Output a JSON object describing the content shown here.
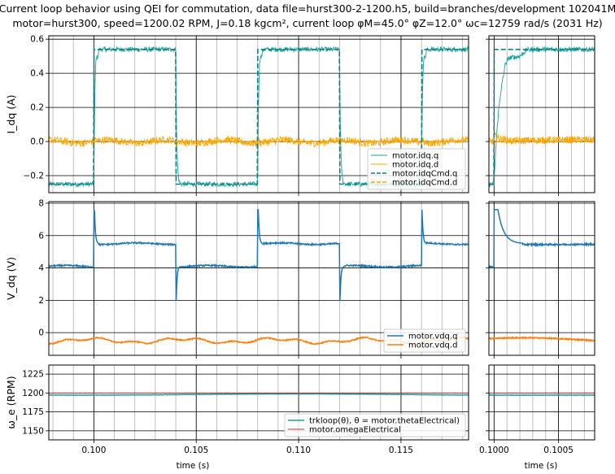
{
  "chart_data": {
    "type": "line",
    "title_line1": "Current loop behavior using QEI for commutation, data file=hurst300-2-1200.h5, build=branches/development 102041M",
    "title_line2": "motor=hurst300, speed=1200.02 RPM, J=0.18 kgcm², current loop φM=45.0° φZ=12.0° ωc=12759 rad/s (2031 Hz)",
    "xlabel": "time (s)",
    "main_xlim": [
      0.0978,
      0.1183
    ],
    "zoom_xlim": [
      0.09996,
      0.10078
    ],
    "main_xticks": [
      0.1,
      0.105,
      0.11,
      0.115
    ],
    "main_xtick_labels": [
      "0.100",
      "0.105",
      "0.110",
      "0.115"
    ],
    "zoom_xticks": [
      0.1,
      0.1005
    ],
    "zoom_xtick_labels": [
      "0.1000",
      "0.1005"
    ],
    "panels": [
      {
        "id": "idq",
        "ylabel": "I_dq (A)",
        "ylim": [
          -0.3,
          0.62
        ],
        "yticks": [
          -0.2,
          0.0,
          0.2,
          0.4,
          0.6
        ],
        "ytick_labels": [
          "−0.2",
          "0.0",
          "0.2",
          "0.4",
          "0.6"
        ],
        "legend_position": "lower-right",
        "series": [
          {
            "name": "motor.idq.q",
            "color": "#17a2a2",
            "style": "thin",
            "kind": "q_actual"
          },
          {
            "name": "motor.idq.d",
            "color": "#ffa500",
            "style": "thin",
            "kind": "d_actual"
          },
          {
            "name": "motor.idqCmd.q",
            "color": "#0f7f7f",
            "style": "dashed",
            "kind": "q_cmd",
            "low": -0.25,
            "high": 0.54
          },
          {
            "name": "motor.idqCmd.d",
            "color": "#ffa500",
            "style": "dashed",
            "kind": "d_cmd",
            "value": 0.0
          }
        ]
      },
      {
        "id": "vdq",
        "ylabel": "V_dq (V)",
        "ylim": [
          -1.4,
          8.1
        ],
        "yticks": [
          0,
          2,
          4,
          6,
          8
        ],
        "ytick_labels": [
          "0",
          "2",
          "4",
          "6",
          "8"
        ],
        "legend_position": "lower-right",
        "series": [
          {
            "name": "motor.vdq.q",
            "color": "#1f77b4",
            "style": "solid",
            "kind": "vq",
            "low": 4.1,
            "high": 5.5,
            "peak": 7.6,
            "dip": 2.0
          },
          {
            "name": "motor.vdq.d",
            "color": "#ff7f0e",
            "style": "solid",
            "kind": "vd",
            "value": -0.5
          }
        ]
      },
      {
        "id": "we",
        "ylabel": "ω_e (RPM)",
        "ylim": [
          1138,
          1237
        ],
        "yticks": [
          1150,
          1175,
          1200,
          1225
        ],
        "ytick_labels": [
          "1150",
          "1175",
          "1200",
          "1225"
        ],
        "legend_position": "lower-right",
        "series": [
          {
            "name": "trkloop(θ), θ = motor.thetaElectrical)",
            "color": "#1f9a9a",
            "style": "solid",
            "kind": "speed",
            "value": 1198
          },
          {
            "name": "motor.omegaElectrical",
            "color": "#d62728",
            "style": "thin",
            "kind": "speed_ref",
            "value": 1200
          }
        ]
      }
    ],
    "q_step_times_up": [
      0.1,
      0.108,
      0.116
    ],
    "q_step_times_down": [
      0.104,
      0.112
    ]
  }
}
